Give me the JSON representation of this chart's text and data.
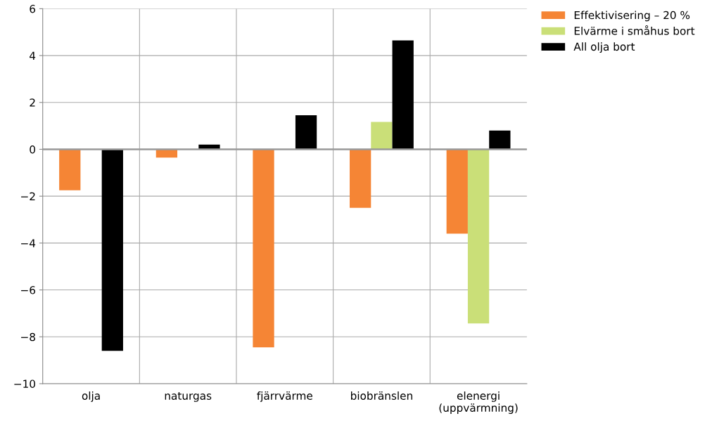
{
  "chart_data": {
    "type": "bar",
    "categories": [
      "olja",
      "naturgas",
      "fjärrvärme",
      "biobränslen",
      "elenergi\n(uppvärmning)"
    ],
    "series": [
      {
        "name": "Effektivisering – 20 %",
        "color": "#f58535",
        "values": [
          -1.75,
          -0.35,
          -8.45,
          -2.5,
          -3.6
        ]
      },
      {
        "name": "Elvärme i småhus bort",
        "color": "#cadf78",
        "values": [
          null,
          null,
          null,
          1.17,
          -7.43
        ]
      },
      {
        "name": "All olja bort",
        "color": "#000000",
        "values": [
          -8.6,
          0.2,
          1.45,
          4.65,
          0.8
        ]
      }
    ],
    "ylim": [
      -10,
      6
    ],
    "yticks": [
      {
        "value": -10,
        "label": "−10"
      },
      {
        "value": -8,
        "label": "−8"
      },
      {
        "value": -6,
        "label": "−6"
      },
      {
        "value": -4,
        "label": "−4"
      },
      {
        "value": -2,
        "label": "−2"
      },
      0,
      2,
      4,
      6
    ],
    "ref_lines": [
      {
        "axis": "y",
        "value": 0,
        "label": null,
        "color": "#999999"
      }
    ],
    "grid": true,
    "legend": "top right"
  }
}
